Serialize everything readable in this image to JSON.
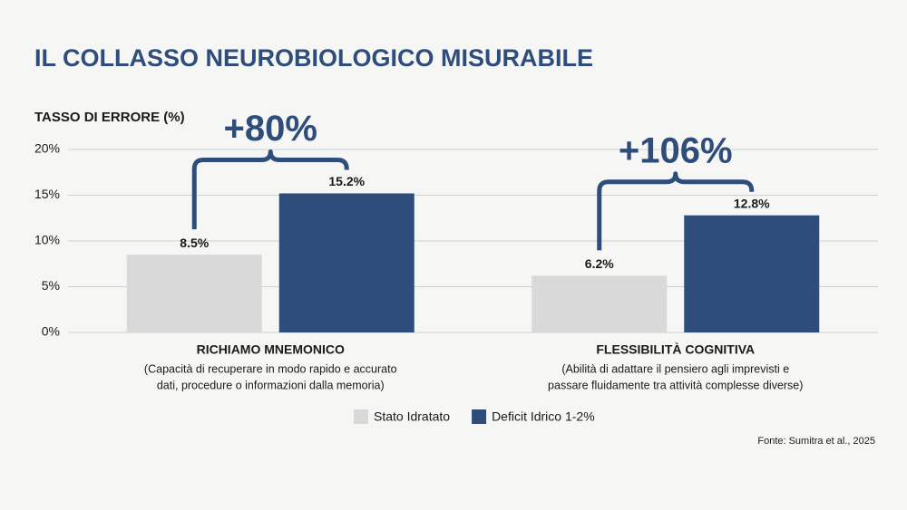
{
  "chart_data": {
    "type": "bar",
    "title": "IL COLLASSO NEUROBIOLOGICO MISURABILE",
    "y_axis_label": "TASSO DI ERRORE (%)",
    "categories": [
      "RICHIAMO MNEMONICO",
      "FLESSIBILITÀ COGNITIVA"
    ],
    "category_notes": [
      [
        "(Capacità di recuperare in modo rapido e accurato",
        "dati, procedure o informazioni dalla memoria)"
      ],
      [
        "(Abilità di adattare il pensiero agli imprevisti e",
        "passare fluidamente tra attività complesse diverse)"
      ]
    ],
    "series": [
      {
        "name": "Stato Idratato",
        "color": "#d9d9d9",
        "values": [
          8.5,
          6.2
        ],
        "value_labels": [
          "8.5%",
          "6.2%"
        ]
      },
      {
        "name": "Deficit Idrico 1-2%",
        "color": "#2e4d7b",
        "values": [
          15.2,
          12.8
        ],
        "value_labels": [
          "15.2%",
          "12.8%"
        ]
      }
    ],
    "annotations": [
      "+80%",
      "+106%"
    ],
    "ylim": [
      0,
      20
    ],
    "yticks": [
      {
        "value": 0,
        "label": "0%"
      },
      {
        "value": 5,
        "label": "5%"
      },
      {
        "value": 10,
        "label": "10%"
      },
      {
        "value": 15,
        "label": "15%"
      },
      {
        "value": 20,
        "label": "20%"
      }
    ],
    "grid": true,
    "source": "Fonte: Sumitra et al., 2025"
  }
}
